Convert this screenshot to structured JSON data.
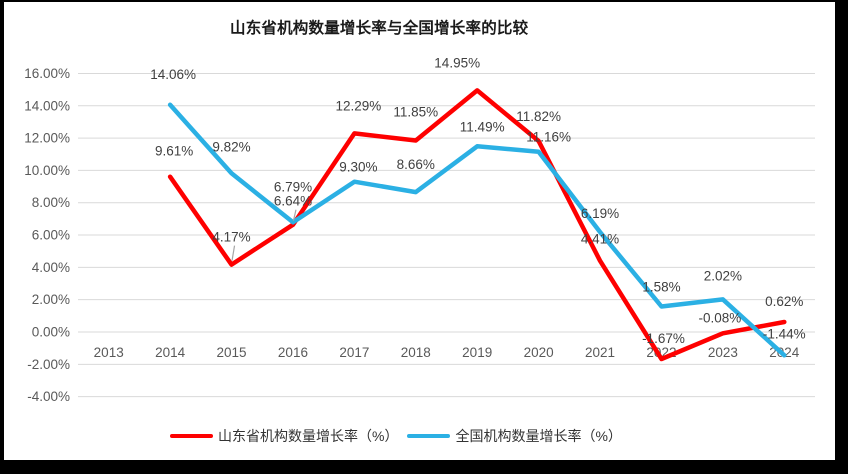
{
  "window": {
    "frame_color": "#000000",
    "chart_background": "#ffffff"
  },
  "chart_data": {
    "type": "line",
    "title": "山东省机构数量增长率与全国增长率的比较",
    "categories": [
      "2013",
      "2014",
      "2015",
      "2016",
      "2017",
      "2018",
      "2019",
      "2020",
      "2021",
      "2022",
      "2023",
      "2024"
    ],
    "series": [
      {
        "name": "山东省机构数量增长率（%）",
        "color": "#fe0000",
        "values": [
          null,
          9.61,
          4.17,
          6.64,
          12.29,
          11.85,
          14.95,
          11.82,
          4.41,
          -1.67,
          -0.08,
          0.62
        ],
        "label_offsets": [
          null,
          [
            4,
            -21
          ],
          [
            0,
            -23
          ],
          [
            0,
            -19
          ],
          [
            4,
            -23
          ],
          [
            0,
            -24
          ],
          [
            -20,
            -23
          ],
          [
            0,
            -20
          ],
          [
            0,
            -17
          ],
          [
            2,
            -16
          ],
          [
            -3,
            -11
          ],
          [
            0,
            -16
          ]
        ]
      },
      {
        "name": "全国机构数量增长率（%）",
        "color": "#2bb0e4",
        "values": [
          null,
          14.06,
          9.82,
          6.79,
          9.3,
          8.66,
          11.49,
          11.16,
          6.19,
          1.58,
          2.02,
          -1.44
        ],
        "label_offsets": [
          null,
          [
            3,
            -26
          ],
          [
            0,
            -22
          ],
          [
            0,
            -31
          ],
          [
            4,
            -10
          ],
          [
            0,
            -23
          ],
          [
            5,
            -15
          ],
          [
            10,
            -10
          ],
          [
            0,
            -14
          ],
          [
            0,
            -15
          ],
          [
            0,
            -19
          ],
          [
            0,
            -17
          ]
        ]
      }
    ],
    "ylim": [
      -4,
      16
    ],
    "ytick_step": 2,
    "ytick_labels": [
      "16.00%",
      "14.00%",
      "12.00%",
      "10.00%",
      "8.00%",
      "6.00%",
      "4.00%",
      "2.00%",
      "0.00%",
      "-2.00%",
      "-4.00%"
    ],
    "grid": true,
    "legend_position": "bottom",
    "leader_lines": [
      {
        "series": 0,
        "index": 2
      },
      {
        "series": 0,
        "index": 3
      }
    ],
    "styles": {
      "grid_color": "#d9d9d9",
      "axis_label_color": "#595959",
      "data_label_color": "#404040",
      "title_color": "#1a1a1a",
      "legend_text_color": "#333333",
      "leader_color": "#a6a6a6"
    }
  }
}
